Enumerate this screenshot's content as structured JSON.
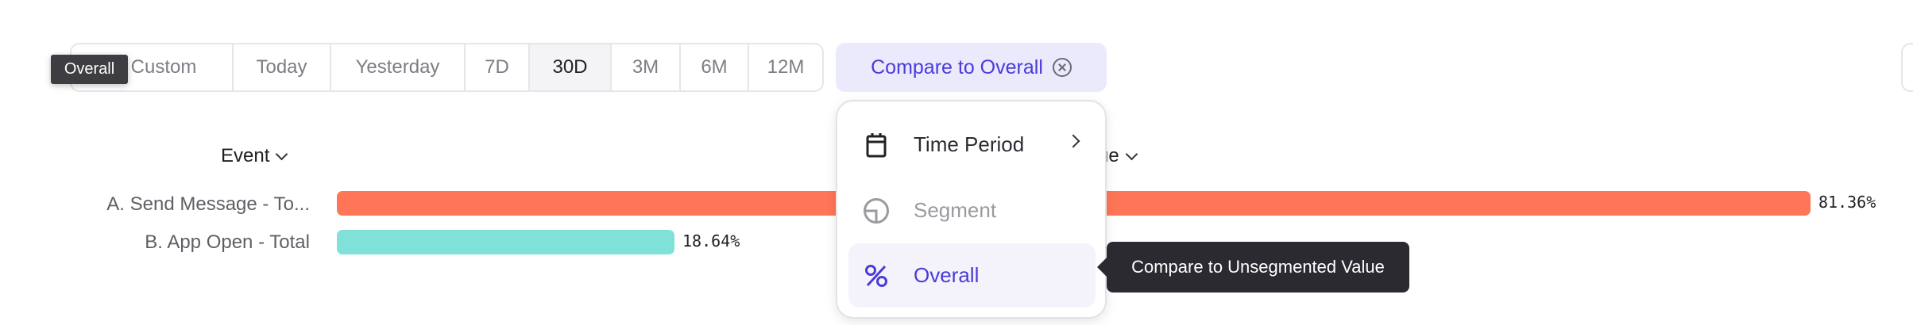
{
  "date_range": {
    "options": [
      "Custom",
      "Today",
      "Yesterday",
      "7D",
      "30D",
      "3M",
      "6M",
      "12M"
    ],
    "selected": "30D"
  },
  "compare_button": {
    "label": "Compare to Overall",
    "clear_icon": "close-circle-icon"
  },
  "hover_tooltip_small": "Overall",
  "table_headers": {
    "event": "Event",
    "value_partial": "ue"
  },
  "chart_data": {
    "type": "bar",
    "orientation": "horizontal",
    "categories": [
      "A. Send Message - To...",
      "B. App Open - Total"
    ],
    "values": [
      81.36,
      18.64
    ],
    "value_labels": [
      "81.36%",
      "18.64%"
    ],
    "colors": [
      "#ff7557",
      "#80e1d9"
    ],
    "xlim": [
      0,
      100
    ]
  },
  "compare_menu": {
    "items": [
      {
        "label": "Time Period",
        "icon": "calendar-icon",
        "has_submenu": true,
        "state": "normal"
      },
      {
        "label": "Segment",
        "icon": "segment-pie-icon",
        "state": "disabled"
      },
      {
        "label": "Overall",
        "icon": "percent-icon",
        "state": "selected"
      }
    ]
  },
  "tooltip": "Compare to Unsegmented Value",
  "colors": {
    "accent": "#4a3bd9",
    "accent_bg": "#ebe9fc"
  }
}
